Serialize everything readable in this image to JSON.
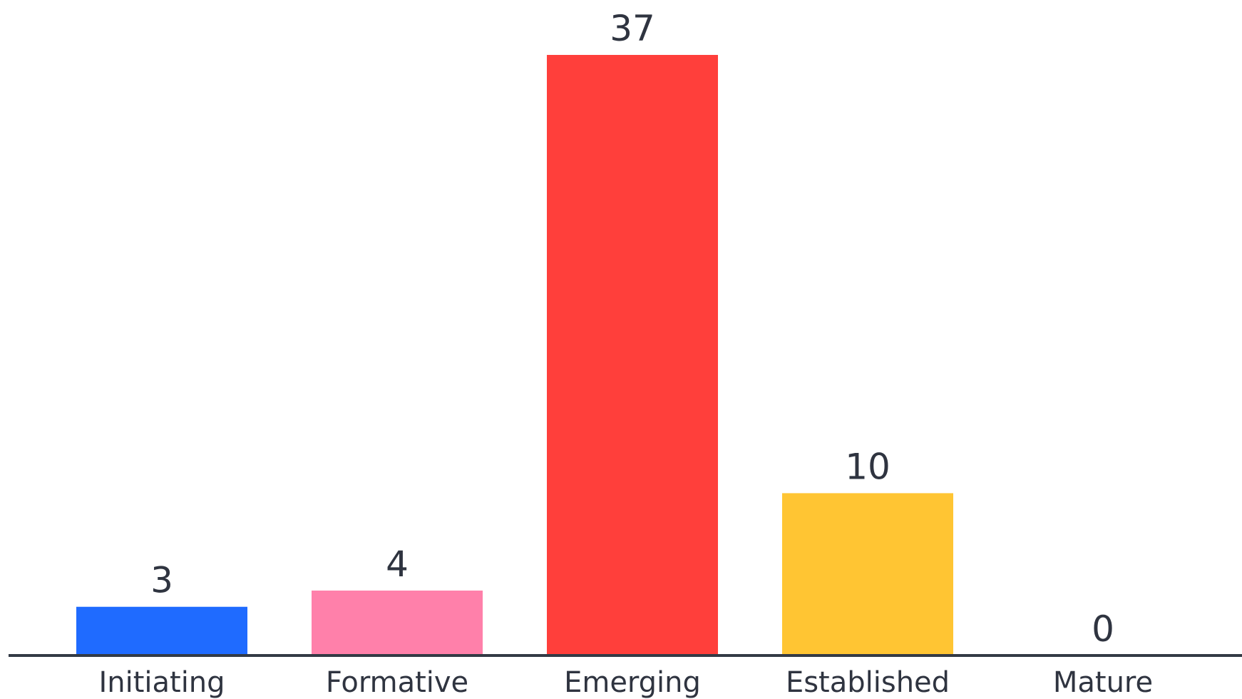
{
  "chart_data": {
    "type": "bar",
    "categories": [
      "Initiating",
      "Formative",
      "Emerging",
      "Established",
      "Mature"
    ],
    "values": [
      3,
      4,
      37,
      10,
      0
    ],
    "colors": [
      "#1f6bff",
      "#ff80aa",
      "#ff3f3b",
      "#ffc533",
      "#ffffff"
    ],
    "axis_color": "#333a45",
    "ylim": [
      0,
      37
    ],
    "title": "",
    "xlabel": "",
    "ylabel": "",
    "legend": false,
    "grid": false,
    "show_value_labels": true
  }
}
